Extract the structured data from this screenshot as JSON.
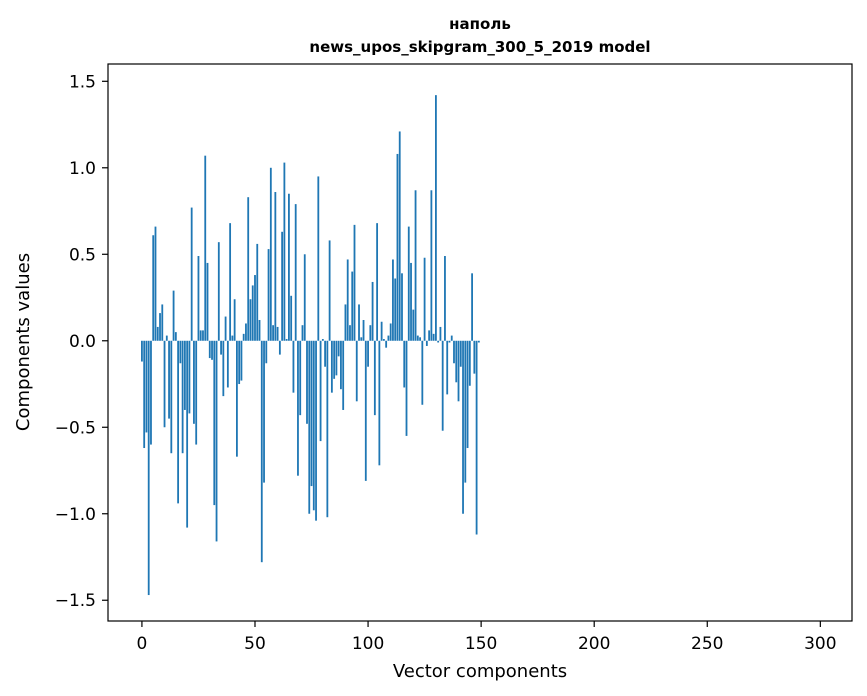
{
  "chart_data": {
    "type": "bar",
    "title": "напольnews_upos_skipgram_300_5_2019 model",
    "title_lines": [
      "наполь",
      "news_upos_skipgram_300_5_2019 model"
    ],
    "xlabel": "Vector components",
    "ylabel": "Components values",
    "xlim": [
      -15,
      314
    ],
    "ylim": [
      -1.62,
      1.6
    ],
    "xticks": [
      0,
      50,
      100,
      150,
      200,
      250,
      300
    ],
    "xtick_labels": [
      "0",
      "50",
      "100",
      "150",
      "200",
      "250",
      "300"
    ],
    "yticks": [
      -1.5,
      -1.0,
      -0.5,
      0.0,
      0.5,
      1.0,
      1.5
    ],
    "ytick_labels": [
      "−1.5",
      "−1.0",
      "−0.5",
      "0.0",
      "0.5",
      "1.0",
      "1.5"
    ],
    "grid": false,
    "bar_color": "#1f77b4",
    "x_start": 0,
    "values": [
      -0.12,
      -0.62,
      -0.53,
      -1.47,
      -0.6,
      0.61,
      0.66,
      0.08,
      0.16,
      0.21,
      -0.5,
      0.03,
      -0.45,
      -0.65,
      0.29,
      0.05,
      -0.94,
      -0.13,
      -0.65,
      -0.4,
      -1.08,
      -0.42,
      0.77,
      -0.48,
      -0.6,
      0.49,
      0.06,
      0.06,
      1.07,
      0.45,
      -0.1,
      -0.11,
      -0.95,
      -1.16,
      0.57,
      -0.08,
      -0.32,
      0.14,
      -0.27,
      0.68,
      0.03,
      0.24,
      -0.67,
      -0.25,
      -0.23,
      0.04,
      0.1,
      0.83,
      0.24,
      0.32,
      0.38,
      0.56,
      0.12,
      -1.28,
      -0.82,
      -0.13,
      0.53,
      1.0,
      0.09,
      0.86,
      0.08,
      -0.08,
      0.63,
      1.03,
      0.01,
      0.85,
      0.26,
      -0.3,
      0.79,
      -0.78,
      -0.43,
      0.09,
      0.5,
      -0.48,
      -1.0,
      -0.84,
      -0.98,
      -1.04,
      0.95,
      -0.58,
      0.01,
      -0.15,
      -1.02,
      0.58,
      -0.3,
      -0.22,
      -0.2,
      -0.09,
      -0.28,
      -0.4,
      0.21,
      0.47,
      0.09,
      0.4,
      0.67,
      -0.35,
      0.21,
      0.02,
      0.12,
      -0.81,
      -0.15,
      0.09,
      0.34,
      -0.43,
      0.68,
      -0.72,
      0.11,
      0.01,
      -0.04,
      0.03,
      0.1,
      0.47,
      0.36,
      1.08,
      1.21,
      0.39,
      -0.27,
      -0.55,
      0.66,
      0.45,
      0.18,
      0.87,
      0.03,
      0.02,
      -0.37,
      0.48,
      -0.03,
      0.06,
      0.87,
      0.04,
      1.42,
      -0.01,
      0.08,
      -0.52,
      0.49,
      -0.31,
      -0.01,
      0.03,
      -0.13,
      -0.24,
      -0.35,
      -0.15,
      -1.0,
      -0.82,
      -0.62,
      -0.26,
      0.39,
      -0.19,
      -1.12,
      -0.01
    ]
  }
}
